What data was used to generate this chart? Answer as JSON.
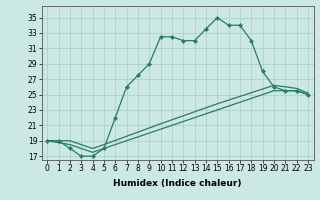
{
  "line1_x": [
    0,
    1,
    2,
    3,
    4,
    5,
    6,
    7,
    8,
    9,
    10,
    11,
    12,
    13,
    14,
    15,
    16,
    17,
    18,
    19,
    20,
    21,
    22,
    23
  ],
  "line1_y": [
    19,
    19,
    18,
    17,
    17,
    18,
    22,
    26,
    27.5,
    29,
    32.5,
    32.5,
    32,
    32,
    33.5,
    35,
    34,
    34,
    32,
    28,
    26,
    25.5,
    25.5,
    25
  ],
  "line2_x": [
    0,
    2,
    3,
    4,
    5,
    10,
    15,
    20,
    21,
    22,
    23
  ],
  "line2_y": [
    19,
    18.5,
    18.0,
    17.5,
    18.0,
    20.5,
    23.0,
    25.5,
    25.5,
    25.5,
    25.0
  ],
  "line3_x": [
    0,
    2,
    3,
    4,
    5,
    10,
    15,
    20,
    21,
    22,
    23
  ],
  "line3_y": [
    19,
    19.0,
    18.5,
    18.0,
    18.5,
    21.2,
    23.8,
    26.2,
    26.0,
    25.8,
    25.2
  ],
  "line_color": "#2a7a6a",
  "bg_color": "#cce8e4",
  "grid_color": "#aaccca",
  "xlabel": "Humidex (Indice chaleur)",
  "xlim": [
    -0.5,
    23.5
  ],
  "ylim": [
    16.5,
    36.5
  ],
  "xticks": [
    0,
    1,
    2,
    3,
    4,
    5,
    6,
    7,
    8,
    9,
    10,
    11,
    12,
    13,
    14,
    15,
    16,
    17,
    18,
    19,
    20,
    21,
    22,
    23
  ],
  "yticks": [
    17,
    19,
    21,
    23,
    25,
    27,
    29,
    31,
    33,
    35
  ],
  "tick_fontsize": 5.5,
  "xlabel_fontsize": 6.5
}
